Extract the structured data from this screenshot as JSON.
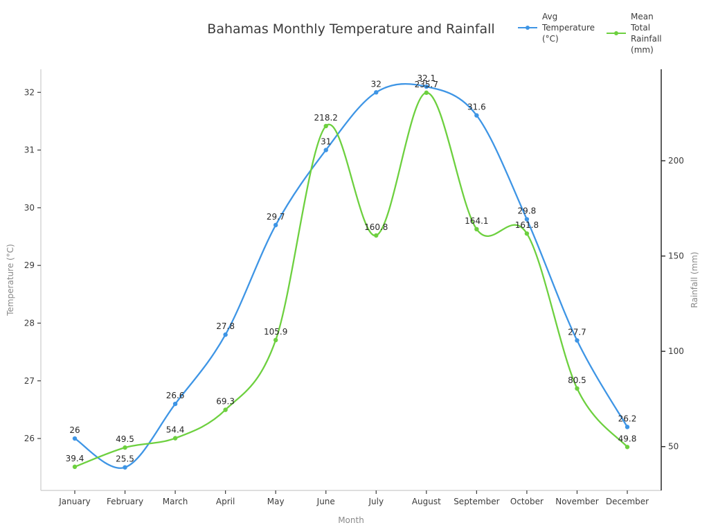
{
  "title": "Bahamas Monthly Temperature and Rainfall",
  "legend": {
    "items": [
      {
        "label": "Avg\nTemperature\n(°C)",
        "color": "#3e95e5",
        "series": "temperature"
      },
      {
        "label": "Mean\nTotal\nRainfall\n(mm)",
        "color": "#6dd03f",
        "series": "rainfall"
      }
    ]
  },
  "chart_data": {
    "type": "line",
    "title": "Bahamas Monthly Temperature and Rainfall",
    "categories": [
      "January",
      "February",
      "March",
      "April",
      "May",
      "June",
      "July",
      "August",
      "September",
      "October",
      "November",
      "December"
    ],
    "series": [
      {
        "name": "Avg Temperature (°C)",
        "axis": "left",
        "color": "#3e95e5",
        "marker": "circle",
        "smooth": true,
        "values": [
          26,
          25.5,
          26.6,
          27.8,
          29.7,
          31,
          32,
          32.1,
          31.6,
          29.8,
          27.7,
          26.2
        ]
      },
      {
        "name": "Mean Total Rainfall (mm)",
        "axis": "right",
        "color": "#6dd03f",
        "marker": "circle",
        "smooth": true,
        "values": [
          39.4,
          49.5,
          54.4,
          69.3,
          105.9,
          218.2,
          160.8,
          235.7,
          164.1,
          161.8,
          80.5,
          49.8
        ]
      }
    ],
    "xlabel": "Month",
    "ylabel_left": "Temperature (°C)",
    "ylabel_right": "Rainfall (mm)",
    "yticks_left": [
      26,
      27,
      28,
      29,
      30,
      31,
      32
    ],
    "yticks_right": [
      50,
      100,
      150,
      200
    ],
    "ylim_left": [
      25.1,
      32.4
    ],
    "ylim_right": [
      27,
      248
    ],
    "grid": false,
    "point_labels": true,
    "legend_position": "top-right"
  },
  "colors": {
    "temperature": "#3e95e5",
    "rainfall": "#6dd03f",
    "title_text": "#3b3b3b",
    "tick_text": "#3b3b3b",
    "axis_label_text": "#8a8a8a",
    "point_label_text": "#262626",
    "spine_light": "#cacaca",
    "spine_dark": "#262626",
    "background": "#ffffff"
  }
}
